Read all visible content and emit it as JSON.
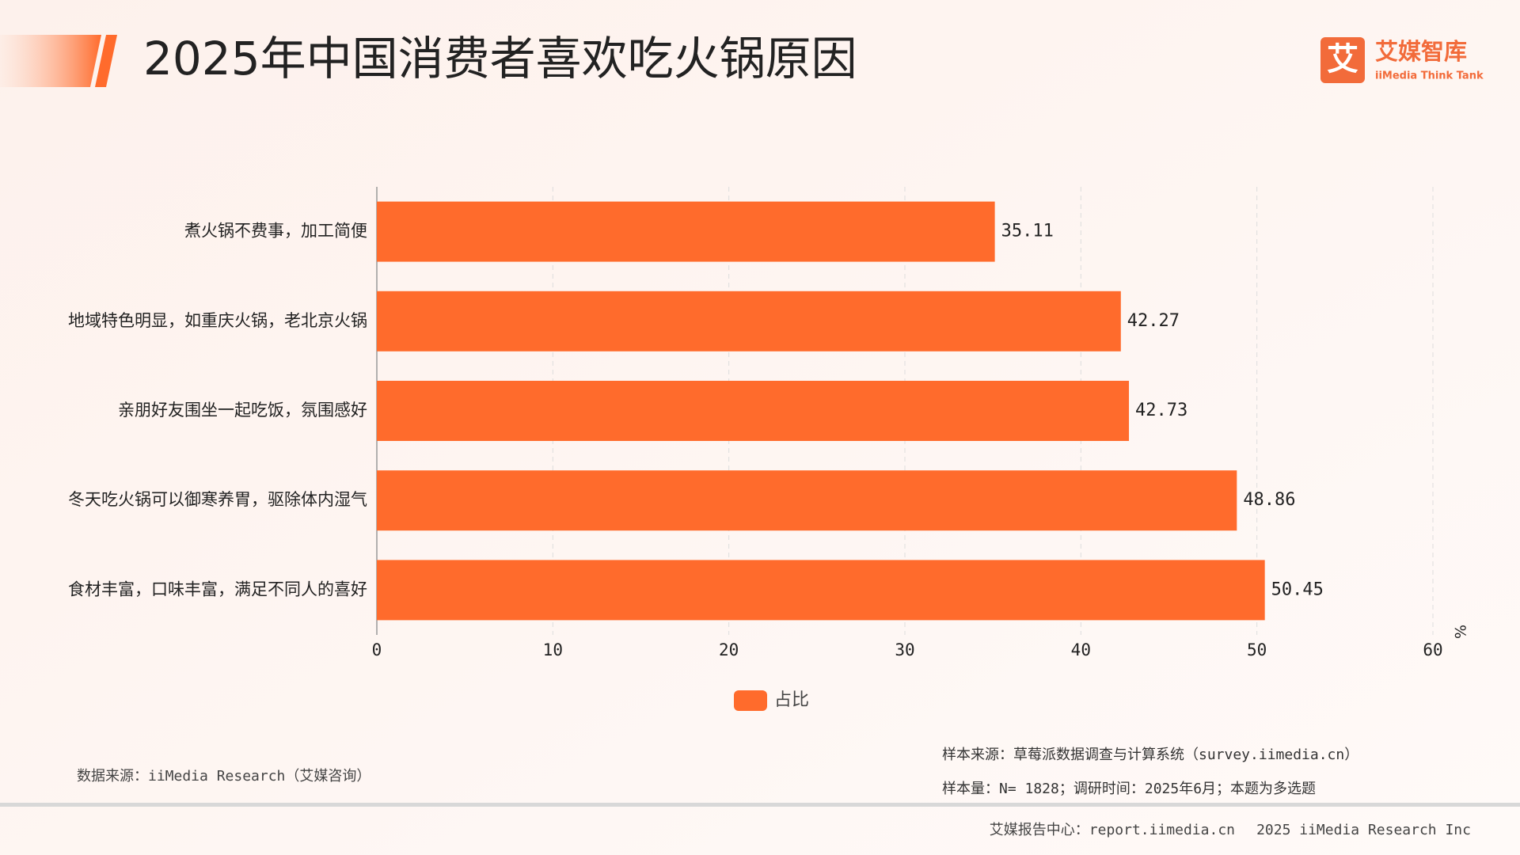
{
  "header": {
    "logo_name": "艾媒智库",
    "logo_sub": "iiMedia Think Tank",
    "logo_icon": "艾"
  },
  "chart_data": {
    "type": "bar",
    "orientation": "horizontal",
    "title": "2025年中国消费者喜欢吃火锅原因",
    "categories": [
      "煮火锅不费事，加工简便",
      "地域特色明显，如重庆火锅，老北京火锅",
      "亲朋好友围坐一起吃饭，氛围感好",
      "冬天吃火锅可以御寒养胃，驱除体内湿气",
      "食材丰富，口味丰富，满足不同人的喜好"
    ],
    "series": [
      {
        "name": "占比",
        "color": "#ff6b2c",
        "values": [
          35.11,
          42.27,
          42.73,
          48.86,
          50.45
        ]
      }
    ],
    "xlim": [
      0,
      60
    ],
    "xticks": [
      0,
      10,
      20,
      30,
      40,
      50,
      60
    ],
    "x_label": "%",
    "grid": true,
    "legend": "bottom"
  },
  "footer": {
    "data_source": "数据来源：iiMedia Research（艾媒咨询）",
    "sample_source": "样本来源：草莓派数据调查与计算系统（survey.iimedia.cn）",
    "sample_info": "样本量：N= 1828；调研时间：2025年6月；本题为多选题",
    "report_center": "艾媒报告中心：report.iimedia.cn",
    "copyright": "2025 iiMedia Research Inc"
  }
}
